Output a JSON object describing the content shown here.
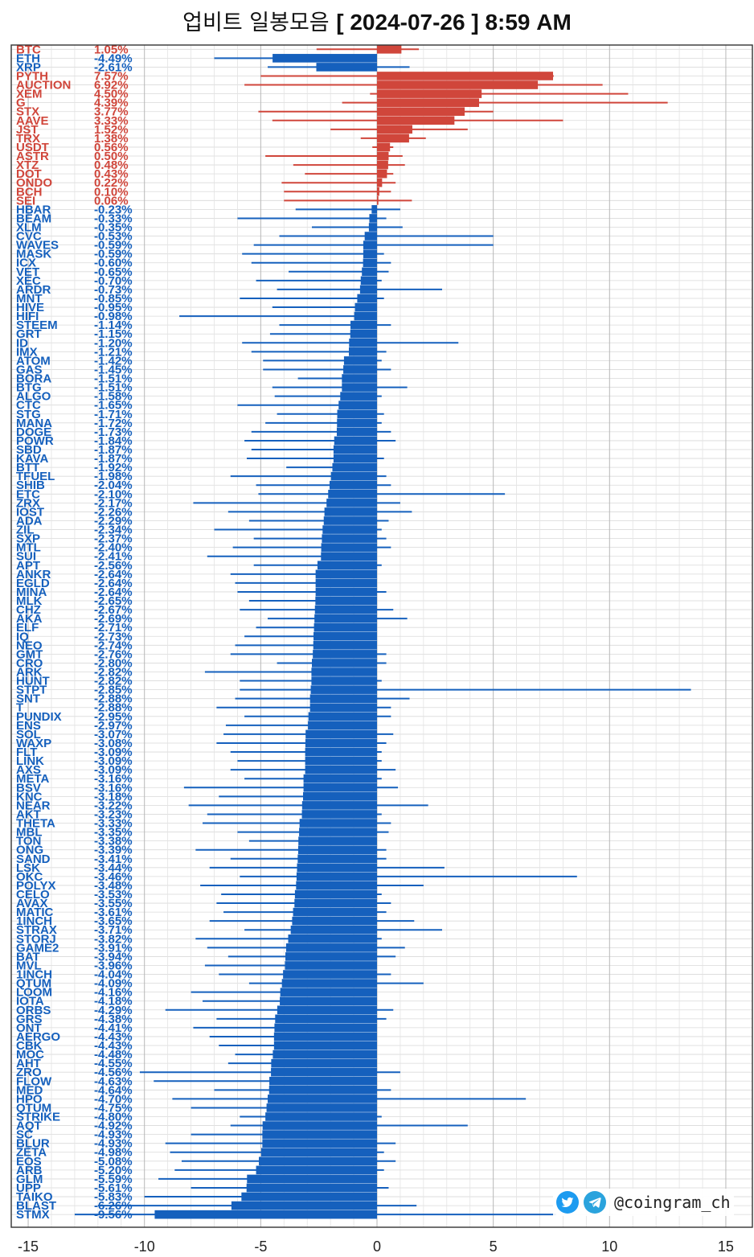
{
  "title": {
    "prefix": "업비트 일봉모음",
    "date_text": "[ 2024-07-26 ]  8:59 AM"
  },
  "credit": {
    "handle": "@coingram_ch",
    "icons": [
      "twitter-bird-icon",
      "telegram-plane-icon"
    ]
  },
  "colors": {
    "gain": "#d0463b",
    "loss": "#1560bd",
    "grid": "#d9d9d9"
  },
  "chart_data": {
    "type": "bar",
    "orientation": "horizontal",
    "xlim": [
      -15,
      15
    ],
    "xticks": [
      -15,
      -10,
      -5,
      0,
      5,
      10,
      15
    ],
    "grid": true,
    "series_note_wicks": true,
    "coins": [
      {
        "name": "BTC",
        "pct": "1.05%",
        "value": 1.05,
        "low": -2.6,
        "high": 1.8
      },
      {
        "name": "ETH",
        "pct": "-4.49%",
        "value": -4.49,
        "low": -7.0,
        "high": 0.0
      },
      {
        "name": "XRP",
        "pct": "-2.61%",
        "value": -2.61,
        "low": -4.7,
        "high": 1.4
      },
      {
        "name": "PYTH",
        "pct": "7.57%",
        "value": 7.57,
        "low": -5.0,
        "high": 7.6
      },
      {
        "name": "AUCTION",
        "pct": "6.92%",
        "value": 6.92,
        "low": -5.7,
        "high": 9.7
      },
      {
        "name": "XEM",
        "pct": "4.50%",
        "value": 4.5,
        "low": -0.3,
        "high": 10.8
      },
      {
        "name": "G",
        "pct": "4.39%",
        "value": 4.39,
        "low": -1.5,
        "high": 12.5
      },
      {
        "name": "STX",
        "pct": "3.77%",
        "value": 3.77,
        "low": -5.1,
        "high": 5.0
      },
      {
        "name": "AAVE",
        "pct": "3.33%",
        "value": 3.33,
        "low": -4.5,
        "high": 8.0
      },
      {
        "name": "JST",
        "pct": "1.52%",
        "value": 1.52,
        "low": -2.0,
        "high": 3.9
      },
      {
        "name": "TRX",
        "pct": "1.38%",
        "value": 1.38,
        "low": -0.7,
        "high": 2.1
      },
      {
        "name": "USDT",
        "pct": "0.56%",
        "value": 0.56,
        "low": -0.2,
        "high": 0.7
      },
      {
        "name": "ASTR",
        "pct": "0.50%",
        "value": 0.5,
        "low": -4.8,
        "high": 1.1
      },
      {
        "name": "XTZ",
        "pct": "0.48%",
        "value": 0.48,
        "low": -3.6,
        "high": 1.2
      },
      {
        "name": "DOT",
        "pct": "0.43%",
        "value": 0.43,
        "low": -3.1,
        "high": 0.7
      },
      {
        "name": "ONDO",
        "pct": "0.22%",
        "value": 0.22,
        "low": -4.1,
        "high": 0.8
      },
      {
        "name": "BCH",
        "pct": "0.10%",
        "value": 0.1,
        "low": -4.0,
        "high": 0.6
      },
      {
        "name": "SEI",
        "pct": "0.06%",
        "value": 0.06,
        "low": -4.0,
        "high": 1.5
      },
      {
        "name": "HBAR",
        "pct": "-0.23%",
        "value": -0.23,
        "low": -3.5,
        "high": 1.0
      },
      {
        "name": "BEAM",
        "pct": "-0.33%",
        "value": -0.33,
        "low": -6.0,
        "high": 0.4
      },
      {
        "name": "XLM",
        "pct": "-0.35%",
        "value": -0.35,
        "low": -2.8,
        "high": 1.1
      },
      {
        "name": "CVC",
        "pct": "-0.53%",
        "value": -0.53,
        "low": -4.2,
        "high": 5.0
      },
      {
        "name": "WAVES",
        "pct": "-0.59%",
        "value": -0.59,
        "low": -5.3,
        "high": 5.0
      },
      {
        "name": "MASK",
        "pct": "-0.59%",
        "value": -0.59,
        "low": -5.8,
        "high": 0.3
      },
      {
        "name": "ICX",
        "pct": "-0.60%",
        "value": -0.6,
        "low": -5.4,
        "high": 0.6
      },
      {
        "name": "VET",
        "pct": "-0.65%",
        "value": -0.65,
        "low": -3.8,
        "high": 0.5
      },
      {
        "name": "XEC",
        "pct": "-0.70%",
        "value": -0.7,
        "low": -5.2,
        "high": 0.2
      },
      {
        "name": "ARDR",
        "pct": "-0.73%",
        "value": -0.73,
        "low": -4.3,
        "high": 2.8
      },
      {
        "name": "MNT",
        "pct": "-0.85%",
        "value": -0.85,
        "low": -5.9,
        "high": 0.3
      },
      {
        "name": "HIVE",
        "pct": "-0.95%",
        "value": -0.95,
        "low": -4.5,
        "high": 0.0
      },
      {
        "name": "HIFI",
        "pct": "-0.98%",
        "value": -0.98,
        "low": -8.5,
        "high": 0.0
      },
      {
        "name": "STEEM",
        "pct": "-1.14%",
        "value": -1.14,
        "low": -4.2,
        "high": 0.6
      },
      {
        "name": "GRT",
        "pct": "-1.15%",
        "value": -1.15,
        "low": -4.6,
        "high": 0.0
      },
      {
        "name": "ID",
        "pct": "-1.20%",
        "value": -1.2,
        "low": -5.8,
        "high": 3.5
      },
      {
        "name": "IMX",
        "pct": "-1.21%",
        "value": -1.21,
        "low": -5.4,
        "high": 0.4
      },
      {
        "name": "ATOM",
        "pct": "-1.42%",
        "value": -1.42,
        "low": -4.9,
        "high": 0.2
      },
      {
        "name": "GAS",
        "pct": "-1.45%",
        "value": -1.45,
        "low": -4.9,
        "high": 0.6
      },
      {
        "name": "BORA",
        "pct": "-1.51%",
        "value": -1.51,
        "low": -3.4,
        "high": 0.0
      },
      {
        "name": "BTG",
        "pct": "-1.51%",
        "value": -1.51,
        "low": -4.5,
        "high": 1.3
      },
      {
        "name": "ALGO",
        "pct": "-1.58%",
        "value": -1.58,
        "low": -4.4,
        "high": 0.2
      },
      {
        "name": "CTC",
        "pct": "-1.65%",
        "value": -1.65,
        "low": -6.0,
        "high": 0.0
      },
      {
        "name": "STG",
        "pct": "-1.71%",
        "value": -1.71,
        "low": -4.3,
        "high": 0.3
      },
      {
        "name": "MANA",
        "pct": "-1.72%",
        "value": -1.72,
        "low": -4.8,
        "high": 0.2
      },
      {
        "name": "DOGE",
        "pct": "-1.73%",
        "value": -1.73,
        "low": -5.4,
        "high": 0.6
      },
      {
        "name": "POWR",
        "pct": "-1.84%",
        "value": -1.84,
        "low": -5.7,
        "high": 0.8
      },
      {
        "name": "SBD",
        "pct": "-1.87%",
        "value": -1.87,
        "low": -5.4,
        "high": 0.0
      },
      {
        "name": "KAVA",
        "pct": "-1.87%",
        "value": -1.87,
        "low": -5.6,
        "high": 0.3
      },
      {
        "name": "BTT",
        "pct": "-1.92%",
        "value": -1.92,
        "low": -3.9,
        "high": 0.0
      },
      {
        "name": "TFUEL",
        "pct": "-1.98%",
        "value": -1.98,
        "low": -6.3,
        "high": 0.4
      },
      {
        "name": "SHIB",
        "pct": "-2.04%",
        "value": -2.04,
        "low": -5.2,
        "high": 0.6
      },
      {
        "name": "ETC",
        "pct": "-2.10%",
        "value": -2.1,
        "low": -5.1,
        "high": 5.5
      },
      {
        "name": "ZRX",
        "pct": "-2.17%",
        "value": -2.17,
        "low": -7.9,
        "high": 1.0
      },
      {
        "name": "IOST",
        "pct": "-2.26%",
        "value": -2.26,
        "low": -6.4,
        "high": 1.5
      },
      {
        "name": "ADA",
        "pct": "-2.29%",
        "value": -2.29,
        "low": -5.5,
        "high": 0.5
      },
      {
        "name": "ZIL",
        "pct": "-2.34%",
        "value": -2.34,
        "low": -7.0,
        "high": 0.2
      },
      {
        "name": "SXP",
        "pct": "-2.37%",
        "value": -2.37,
        "low": -5.3,
        "high": 0.4
      },
      {
        "name": "MTL",
        "pct": "-2.40%",
        "value": -2.4,
        "low": -6.2,
        "high": 0.6
      },
      {
        "name": "SUI",
        "pct": "-2.41%",
        "value": -2.41,
        "low": -7.3,
        "high": 0.0
      },
      {
        "name": "APT",
        "pct": "-2.56%",
        "value": -2.56,
        "low": -5.3,
        "high": 0.2
      },
      {
        "name": "ANKR",
        "pct": "-2.64%",
        "value": -2.64,
        "low": -6.3,
        "high": 0.0
      },
      {
        "name": "EGLD",
        "pct": "-2.64%",
        "value": -2.64,
        "low": -6.1,
        "high": 0.0
      },
      {
        "name": "MINA",
        "pct": "-2.64%",
        "value": -2.64,
        "low": -6.0,
        "high": 0.4
      },
      {
        "name": "MLK",
        "pct": "-2.65%",
        "value": -2.65,
        "low": -5.5,
        "high": 0.0
      },
      {
        "name": "CHZ",
        "pct": "-2.67%",
        "value": -2.67,
        "low": -5.9,
        "high": 0.7
      },
      {
        "name": "AKA",
        "pct": "-2.69%",
        "value": -2.69,
        "low": -4.7,
        "high": 1.3
      },
      {
        "name": "ELF",
        "pct": "-2.71%",
        "value": -2.71,
        "low": -5.2,
        "high": 0.0
      },
      {
        "name": "IQ",
        "pct": "-2.73%",
        "value": -2.73,
        "low": -5.7,
        "high": 0.0
      },
      {
        "name": "NEO",
        "pct": "-2.74%",
        "value": -2.74,
        "low": -6.1,
        "high": 0.0
      },
      {
        "name": "GMT",
        "pct": "-2.76%",
        "value": -2.76,
        "low": -6.3,
        "high": 0.4
      },
      {
        "name": "CRO",
        "pct": "-2.80%",
        "value": -2.8,
        "low": -4.3,
        "high": 0.4
      },
      {
        "name": "ARK",
        "pct": "-2.82%",
        "value": -2.82,
        "low": -7.4,
        "high": 0.0
      },
      {
        "name": "HUNT",
        "pct": "-2.82%",
        "value": -2.82,
        "low": -5.9,
        "high": 0.2
      },
      {
        "name": "STPT",
        "pct": "-2.85%",
        "value": -2.85,
        "low": -5.9,
        "high": 13.5
      },
      {
        "name": "SNT",
        "pct": "-2.88%",
        "value": -2.88,
        "low": -6.1,
        "high": 1.4
      },
      {
        "name": "T",
        "pct": "-2.88%",
        "value": -2.88,
        "low": -6.9,
        "high": 0.6
      },
      {
        "name": "PUNDIX",
        "pct": "-2.95%",
        "value": -2.95,
        "low": -5.7,
        "high": 0.6
      },
      {
        "name": "ENS",
        "pct": "-2.97%",
        "value": -2.97,
        "low": -6.5,
        "high": 0.0
      },
      {
        "name": "SOL",
        "pct": "-3.07%",
        "value": -3.07,
        "low": -6.6,
        "high": 0.7
      },
      {
        "name": "WAXP",
        "pct": "-3.08%",
        "value": -3.08,
        "low": -6.9,
        "high": 0.4
      },
      {
        "name": "FLT",
        "pct": "-3.09%",
        "value": -3.09,
        "low": -6.3,
        "high": 0.2
      },
      {
        "name": "LINK",
        "pct": "-3.09%",
        "value": -3.09,
        "low": -6.0,
        "high": 0.2
      },
      {
        "name": "AXS",
        "pct": "-3.09%",
        "value": -3.09,
        "low": -6.3,
        "high": 0.8
      },
      {
        "name": "META",
        "pct": "-3.16%",
        "value": -3.16,
        "low": -5.7,
        "high": 0.2
      },
      {
        "name": "BSV",
        "pct": "-3.16%",
        "value": -3.16,
        "low": -8.3,
        "high": 0.9
      },
      {
        "name": "KNC",
        "pct": "-3.18%",
        "value": -3.18,
        "low": -6.8,
        "high": 0.0
      },
      {
        "name": "NEAR",
        "pct": "-3.22%",
        "value": -3.22,
        "low": -8.1,
        "high": 2.2
      },
      {
        "name": "AKT",
        "pct": "-3.23%",
        "value": -3.23,
        "low": -7.3,
        "high": 0.2
      },
      {
        "name": "THETA",
        "pct": "-3.33%",
        "value": -3.33,
        "low": -7.5,
        "high": 0.6
      },
      {
        "name": "MBL",
        "pct": "-3.35%",
        "value": -3.35,
        "low": -6.0,
        "high": 0.5
      },
      {
        "name": "TON",
        "pct": "-3.38%",
        "value": -3.38,
        "low": -5.5,
        "high": 0.0
      },
      {
        "name": "ONG",
        "pct": "-3.39%",
        "value": -3.39,
        "low": -7.8,
        "high": 0.4
      },
      {
        "name": "SAND",
        "pct": "-3.41%",
        "value": -3.41,
        "low": -6.3,
        "high": 0.4
      },
      {
        "name": "LSK",
        "pct": "-3.44%",
        "value": -3.44,
        "low": -7.2,
        "high": 2.9
      },
      {
        "name": "OKC",
        "pct": "-3.46%",
        "value": -3.46,
        "low": -5.9,
        "high": 8.6
      },
      {
        "name": "POLYX",
        "pct": "-3.48%",
        "value": -3.48,
        "low": -7.6,
        "high": 2.0
      },
      {
        "name": "CELO",
        "pct": "-3.53%",
        "value": -3.53,
        "low": -6.7,
        "high": 0.2
      },
      {
        "name": "AVAX",
        "pct": "-3.55%",
        "value": -3.55,
        "low": -6.9,
        "high": 0.6
      },
      {
        "name": "MATIC",
        "pct": "-3.61%",
        "value": -3.61,
        "low": -6.6,
        "high": 0.4
      },
      {
        "name": "1INCH",
        "pct": "-3.65%",
        "value": -3.65,
        "low": -7.2,
        "high": 1.6
      },
      {
        "name": "STRAX",
        "pct": "-3.71%",
        "value": -3.71,
        "low": -5.7,
        "high": 2.8
      },
      {
        "name": "STORJ",
        "pct": "-3.82%",
        "value": -3.82,
        "low": -7.8,
        "high": 0.2
      },
      {
        "name": "GAME2",
        "pct": "-3.91%",
        "value": -3.91,
        "low": -7.3,
        "high": 1.2
      },
      {
        "name": "BAT",
        "pct": "-3.94%",
        "value": -3.94,
        "low": -6.4,
        "high": 0.8
      },
      {
        "name": "MVL",
        "pct": "-3.96%",
        "value": -3.96,
        "low": -7.4,
        "high": 0.0
      },
      {
        "name": "1INCH",
        "pct": "-4.04%",
        "value": -4.04,
        "low": -6.8,
        "high": 0.6
      },
      {
        "name": "QTUM",
        "pct": "-4.09%",
        "value": -4.09,
        "low": -5.5,
        "high": 2.0
      },
      {
        "name": "LOOM",
        "pct": "-4.16%",
        "value": -4.16,
        "low": -8.0,
        "high": 0.0
      },
      {
        "name": "IOTA",
        "pct": "-4.18%",
        "value": -4.18,
        "low": -7.5,
        "high": 0.0
      },
      {
        "name": "ORBS",
        "pct": "-4.29%",
        "value": -4.29,
        "low": -9.1,
        "high": 0.7
      },
      {
        "name": "GRS",
        "pct": "-4.38%",
        "value": -4.38,
        "low": -6.9,
        "high": 0.4
      },
      {
        "name": "ONT",
        "pct": "-4.41%",
        "value": -4.41,
        "low": -7.9,
        "high": 0.0
      },
      {
        "name": "AERGO",
        "pct": "-4.43%",
        "value": -4.43,
        "low": -7.2,
        "high": 0.0
      },
      {
        "name": "CBK",
        "pct": "-4.43%",
        "value": -4.43,
        "low": -6.8,
        "high": 0.0
      },
      {
        "name": "MOC",
        "pct": "-4.48%",
        "value": -4.48,
        "low": -6.1,
        "high": 0.0
      },
      {
        "name": "AHT",
        "pct": "-4.55%",
        "value": -4.55,
        "low": -6.4,
        "high": 0.0
      },
      {
        "name": "ZRO",
        "pct": "-4.56%",
        "value": -4.56,
        "low": -10.2,
        "high": 1.0
      },
      {
        "name": "FLOW",
        "pct": "-4.63%",
        "value": -4.63,
        "low": -9.6,
        "high": 0.0
      },
      {
        "name": "MED",
        "pct": "-4.64%",
        "value": -4.64,
        "low": -7.0,
        "high": 0.6
      },
      {
        "name": "HPO",
        "pct": "-4.70%",
        "value": -4.7,
        "low": -8.8,
        "high": 6.4
      },
      {
        "name": "QTUM",
        "pct": "-4.75%",
        "value": -4.75,
        "low": -8.0,
        "high": 0.0
      },
      {
        "name": "STRIKE",
        "pct": "-4.80%",
        "value": -4.8,
        "low": -5.9,
        "high": 0.2
      },
      {
        "name": "AQT",
        "pct": "-4.92%",
        "value": -4.92,
        "low": -6.3,
        "high": 3.9
      },
      {
        "name": "SC",
        "pct": "-4.93%",
        "value": -4.93,
        "low": -8.0,
        "high": 0.0
      },
      {
        "name": "BLUR",
        "pct": "-4.93%",
        "value": -4.93,
        "low": -9.1,
        "high": 0.8
      },
      {
        "name": "ZETA",
        "pct": "-4.98%",
        "value": -4.98,
        "low": -8.9,
        "high": 0.3
      },
      {
        "name": "EOS",
        "pct": "-5.08%",
        "value": -5.08,
        "low": -8.4,
        "high": 0.8
      },
      {
        "name": "ARB",
        "pct": "-5.20%",
        "value": -5.2,
        "low": -8.7,
        "high": 0.3
      },
      {
        "name": "GLM",
        "pct": "-5.59%",
        "value": -5.59,
        "low": -9.4,
        "high": 0.0
      },
      {
        "name": "UPP",
        "pct": "-5.61%",
        "value": -5.61,
        "low": -8.0,
        "high": 0.5
      },
      {
        "name": "TAIKO",
        "pct": "-5.83%",
        "value": -5.83,
        "low": -10.0,
        "high": 0.0
      },
      {
        "name": "BLAST",
        "pct": "-6.26%",
        "value": -6.26,
        "low": -12.0,
        "high": 1.7
      },
      {
        "name": "STMX",
        "pct": "-9.56%",
        "value": -9.56,
        "low": -13.0,
        "high": 7.7
      }
    ]
  }
}
